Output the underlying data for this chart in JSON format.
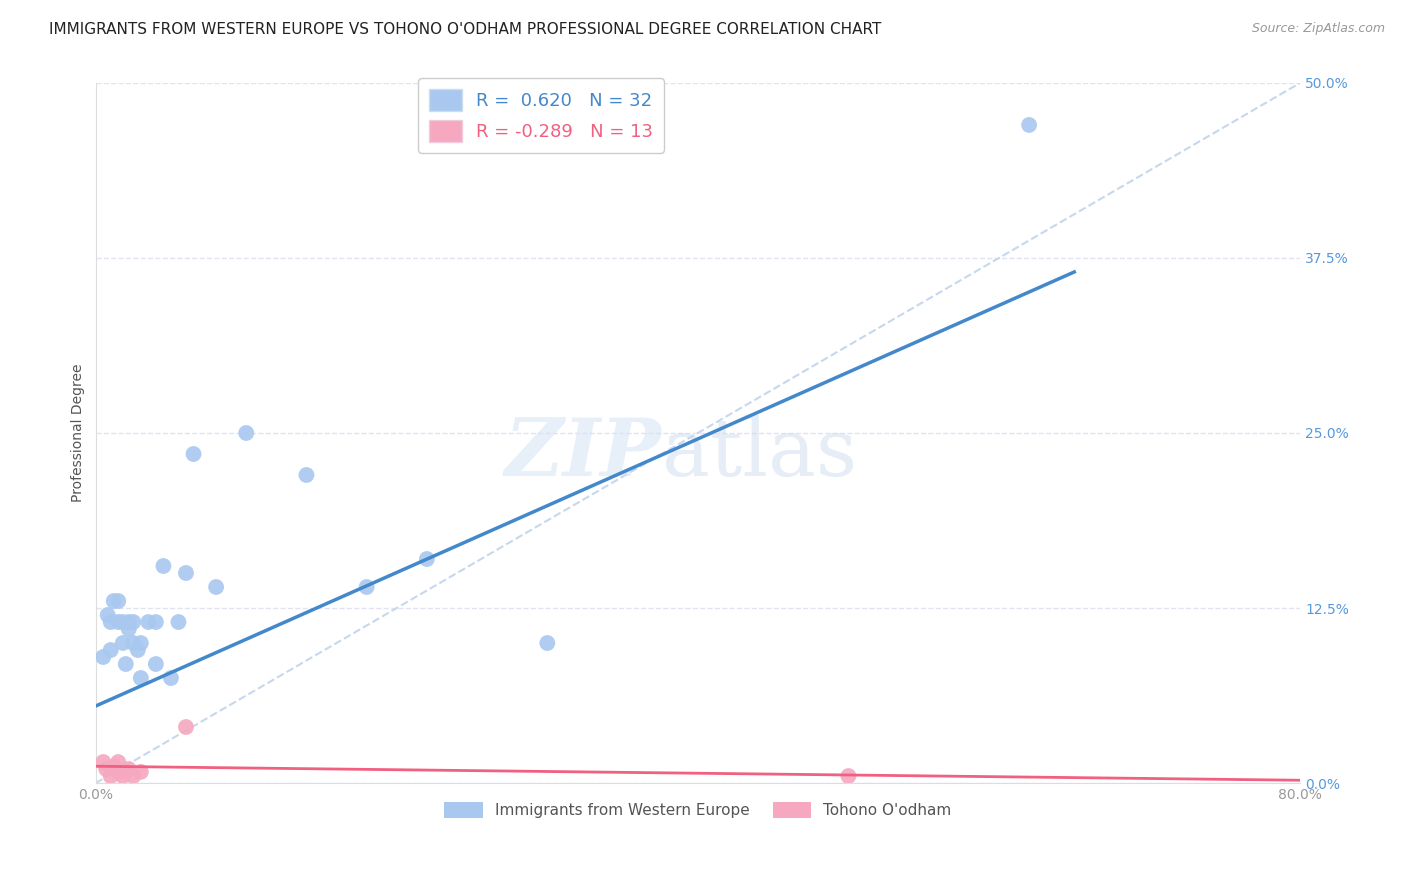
{
  "title": "IMMIGRANTS FROM WESTERN EUROPE VS TOHONO O'ODHAM PROFESSIONAL DEGREE CORRELATION CHART",
  "source": "Source: ZipAtlas.com",
  "ylabel": "Professional Degree",
  "xlim": [
    0.0,
    0.8
  ],
  "ylim": [
    0.0,
    0.5
  ],
  "xticks": [
    0.0,
    0.1,
    0.2,
    0.3,
    0.4,
    0.5,
    0.6,
    0.7,
    0.8
  ],
  "xticklabels": [
    "0.0%",
    "",
    "",
    "",
    "",
    "",
    "",
    "",
    "80.0%"
  ],
  "yticks": [
    0.0,
    0.125,
    0.25,
    0.375,
    0.5
  ],
  "yticklabels": [
    "0.0%",
    "12.5%",
    "25.0%",
    "37.5%",
    "50.0%"
  ],
  "blue_R": 0.62,
  "blue_N": 32,
  "pink_R": -0.289,
  "pink_N": 13,
  "blue_color": "#A8C8F0",
  "pink_color": "#F5A8C0",
  "blue_line_color": "#4488CC",
  "pink_line_color": "#F06080",
  "ref_line_color": "#C0D4EC",
  "blue_x": [
    0.005,
    0.008,
    0.01,
    0.01,
    0.012,
    0.015,
    0.015,
    0.018,
    0.018,
    0.02,
    0.022,
    0.022,
    0.025,
    0.025,
    0.028,
    0.03,
    0.03,
    0.035,
    0.04,
    0.04,
    0.045,
    0.05,
    0.055,
    0.06,
    0.065,
    0.08,
    0.1,
    0.14,
    0.18,
    0.22,
    0.3,
    0.62
  ],
  "blue_y": [
    0.09,
    0.12,
    0.095,
    0.115,
    0.13,
    0.115,
    0.13,
    0.1,
    0.115,
    0.085,
    0.11,
    0.115,
    0.1,
    0.115,
    0.095,
    0.075,
    0.1,
    0.115,
    0.085,
    0.115,
    0.155,
    0.075,
    0.115,
    0.15,
    0.235,
    0.14,
    0.25,
    0.22,
    0.14,
    0.16,
    0.1,
    0.47
  ],
  "pink_x": [
    0.005,
    0.007,
    0.01,
    0.012,
    0.015,
    0.015,
    0.018,
    0.02,
    0.022,
    0.025,
    0.03,
    0.06,
    0.5
  ],
  "pink_y": [
    0.015,
    0.01,
    0.005,
    0.012,
    0.008,
    0.015,
    0.005,
    0.008,
    0.01,
    0.005,
    0.008,
    0.04,
    0.005
  ],
  "blue_line_x0": 0.0,
  "blue_line_y0": 0.055,
  "blue_line_x1": 0.65,
  "blue_line_y1": 0.365,
  "pink_line_x0": 0.0,
  "pink_line_y0": 0.012,
  "pink_line_x1": 0.8,
  "pink_line_y1": 0.002,
  "watermark_zip": "ZIP",
  "watermark_atlas": "atlas",
  "background_color": "#FFFFFF",
  "grid_color": "#E0E4F0",
  "title_fontsize": 11,
  "axis_label_fontsize": 10,
  "tick_fontsize": 10,
  "legend1_labels": [
    "R =  0.620   N = 32",
    "R = -0.289   N = 13"
  ],
  "legend2_labels": [
    "Immigrants from Western Europe",
    "Tohono O'odham"
  ]
}
